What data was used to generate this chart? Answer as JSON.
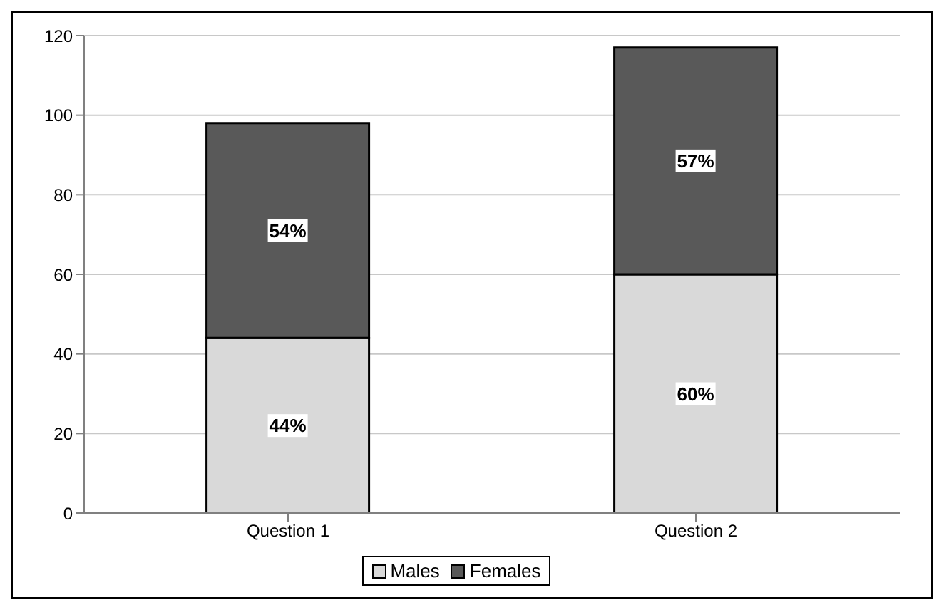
{
  "chart_data": {
    "type": "bar",
    "stacked": true,
    "categories": [
      "Question 1",
      "Question 2"
    ],
    "series": [
      {
        "name": "Males",
        "color": "#d9d9d9",
        "values": [
          44,
          60
        ],
        "value_labels": [
          "44%",
          "60%"
        ]
      },
      {
        "name": "Females",
        "color": "#595959",
        "values": [
          54,
          57
        ],
        "value_labels": [
          "54%",
          "57%"
        ]
      }
    ],
    "ylim": [
      0,
      120
    ],
    "yticks": [
      0,
      20,
      40,
      60,
      80,
      100,
      120
    ],
    "grid": "y",
    "legend": "bottom"
  }
}
